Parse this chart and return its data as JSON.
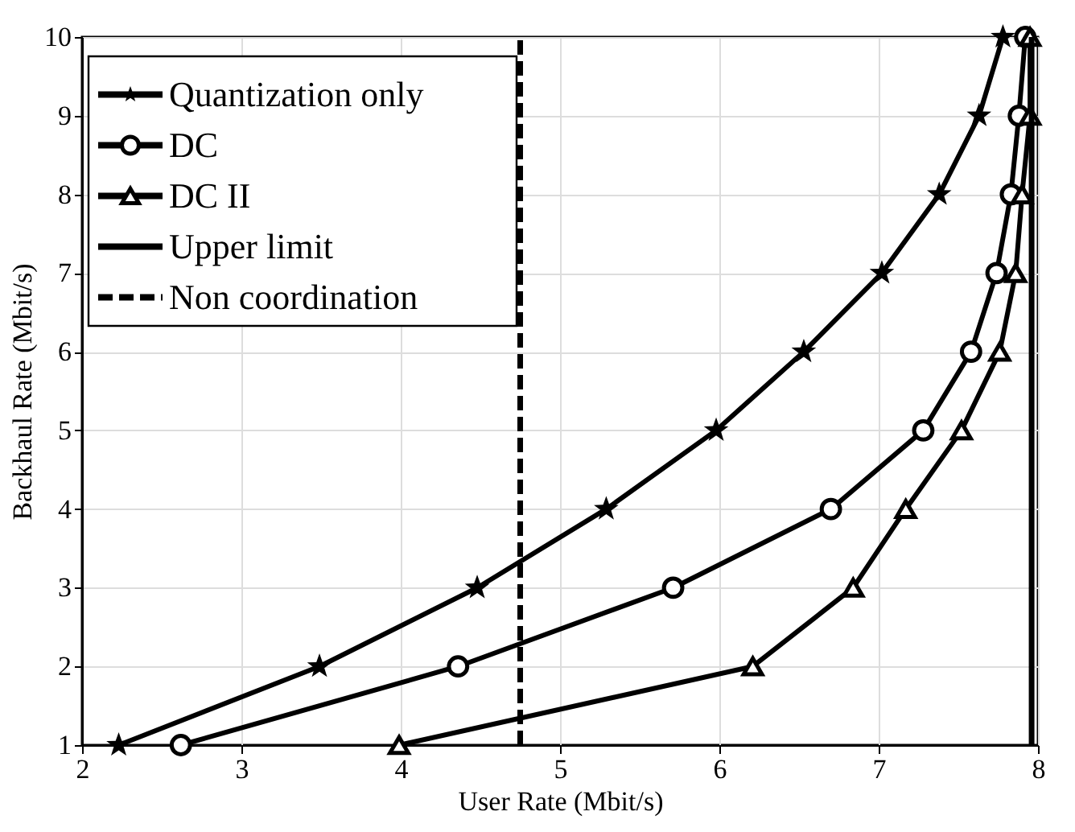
{
  "chart_data": {
    "type": "line",
    "xlabel": "User Rate (Mbit/s)",
    "ylabel": "Backhaul Rate (Mbit/s)",
    "xlim": [
      2,
      8
    ],
    "xticks": [
      2,
      3,
      4,
      5,
      6,
      7,
      8
    ],
    "ylim": [
      1,
      10
    ],
    "yticks": [
      1,
      2,
      3,
      4,
      5,
      6,
      7,
      8,
      9,
      10
    ],
    "grid": true,
    "legend": "top left",
    "series": [
      {
        "name": "Quantization only",
        "color": "#000000",
        "marker": "star",
        "line_style": "solid",
        "x": [
          2.23,
          3.49,
          4.48,
          5.29,
          5.98,
          6.53,
          7.02,
          7.38,
          7.63,
          7.78
        ],
        "values": [
          1,
          2,
          3,
          4,
          5,
          6,
          7,
          8,
          9,
          10
        ]
      },
      {
        "name": "DC",
        "color": "#000000",
        "marker": "circle",
        "line_style": "solid",
        "x": [
          2.62,
          4.36,
          5.71,
          6.7,
          7.28,
          7.58,
          7.74,
          7.83,
          7.88,
          7.92
        ],
        "values": [
          1,
          2,
          3,
          4,
          5,
          6,
          7,
          8,
          9,
          10
        ]
      },
      {
        "name": "DC II",
        "color": "#000000",
        "marker": "triangle",
        "line_style": "solid",
        "x": [
          3.99,
          6.21,
          6.84,
          7.17,
          7.52,
          7.76,
          7.86,
          7.9,
          7.95,
          7.95
        ],
        "values": [
          1,
          2,
          3,
          4,
          5,
          6,
          7,
          8,
          9,
          10
        ]
      },
      {
        "name": "Upper limit",
        "color": "#000000",
        "marker": "none",
        "line_style": "solid",
        "x": [
          7.96,
          7.96
        ],
        "values": [
          1,
          10
        ]
      },
      {
        "name": "Non coordination",
        "color": "#000000",
        "marker": "none",
        "line_style": "dashed",
        "x": [
          4.75,
          4.75
        ],
        "values": [
          1,
          10
        ]
      }
    ]
  }
}
